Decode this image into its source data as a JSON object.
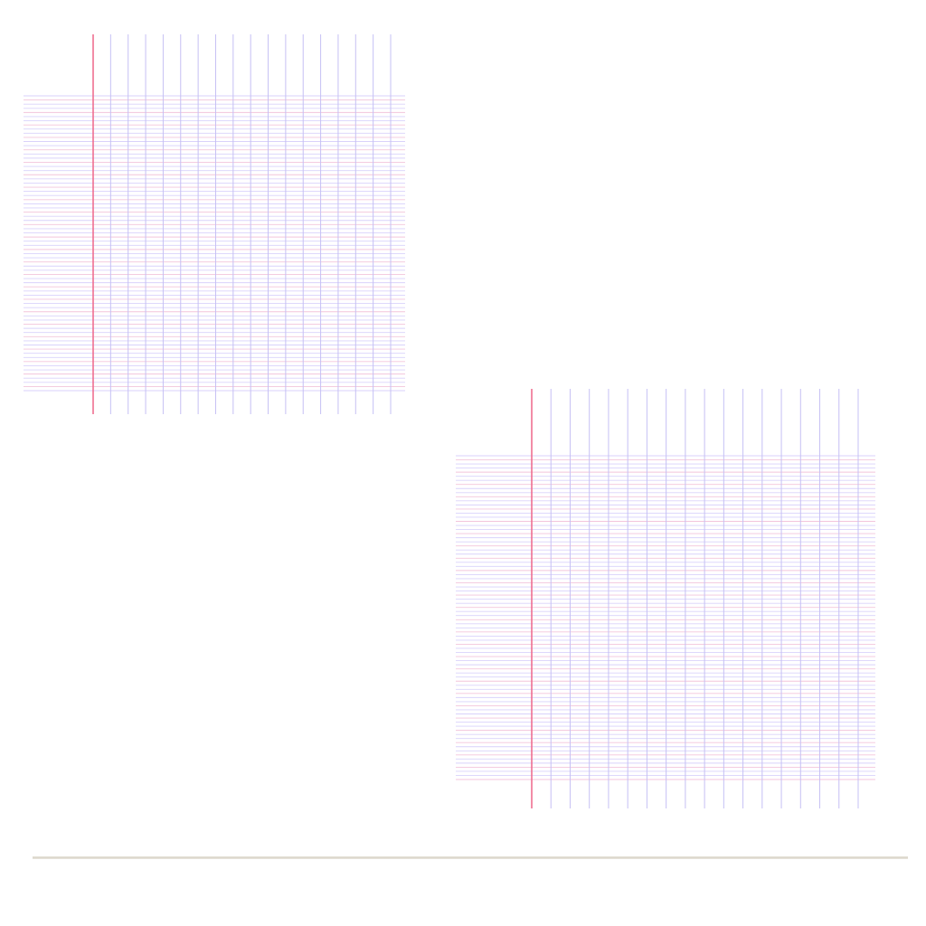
{
  "colors": {
    "background": "#ffffff",
    "margin_line": "#ee6f91",
    "vertical_rule": "#c6c0f4",
    "horizontal_rule": "#d9d2fb",
    "horizontal_rule_alt": "#f3c5dc",
    "footer_rule": "#dcd7cc"
  },
  "sheets": [
    {
      "id": "top-left",
      "vertical_rules": 18,
      "horizontal_rules": 72
    },
    {
      "id": "bottom-right",
      "vertical_rules": 18,
      "horizontal_rules": 80
    }
  ]
}
